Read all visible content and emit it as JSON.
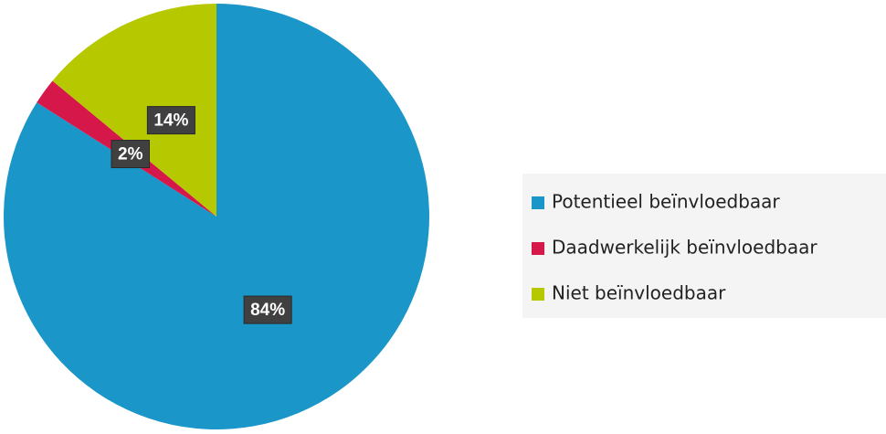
{
  "chart_data": {
    "type": "pie",
    "categories": [
      "Potentieel beïnvloedbaar",
      "Daadwerkelijk beïnvloedbaar",
      "Niet beïnvloedbaar"
    ],
    "values": [
      84,
      2,
      14
    ],
    "value_labels": [
      "84%",
      "2%",
      "14%"
    ],
    "colors": [
      "#1a96c8",
      "#d6174a",
      "#b5c800"
    ],
    "legend": "right"
  }
}
